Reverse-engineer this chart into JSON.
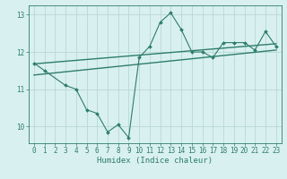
{
  "x_data": [
    0,
    1,
    2,
    3,
    4,
    5,
    6,
    7,
    8,
    9,
    10,
    11,
    12,
    13,
    14,
    15,
    16,
    17,
    18,
    19,
    20,
    21,
    22,
    23
  ],
  "y_main": [
    11.7,
    11.5,
    null,
    11.1,
    11.0,
    10.45,
    10.35,
    9.85,
    10.05,
    9.7,
    11.85,
    12.15,
    12.8,
    13.05,
    12.6,
    12.0,
    12.0,
    11.85,
    12.25,
    12.25,
    12.25,
    12.05,
    12.55,
    12.15
  ],
  "trend1_x": [
    0,
    23
  ],
  "trend1_y": [
    11.68,
    12.22
  ],
  "trend2_x": [
    0,
    23
  ],
  "trend2_y": [
    11.38,
    12.05
  ],
  "line_color": "#2d7d6e",
  "bg_color": "#d9f0f0",
  "grid_color": "#b8d8d8",
  "xlabel": "Humidex (Indice chaleur)",
  "ylim": [
    9.55,
    13.25
  ],
  "xlim": [
    -0.5,
    23.5
  ],
  "yticks": [
    10,
    11,
    12,
    13
  ],
  "xticks": [
    0,
    1,
    2,
    3,
    4,
    5,
    6,
    7,
    8,
    9,
    10,
    11,
    12,
    13,
    14,
    15,
    16,
    17,
    18,
    19,
    20,
    21,
    22,
    23
  ],
  "tick_fontsize": 5.5,
  "xlabel_fontsize": 6.5
}
